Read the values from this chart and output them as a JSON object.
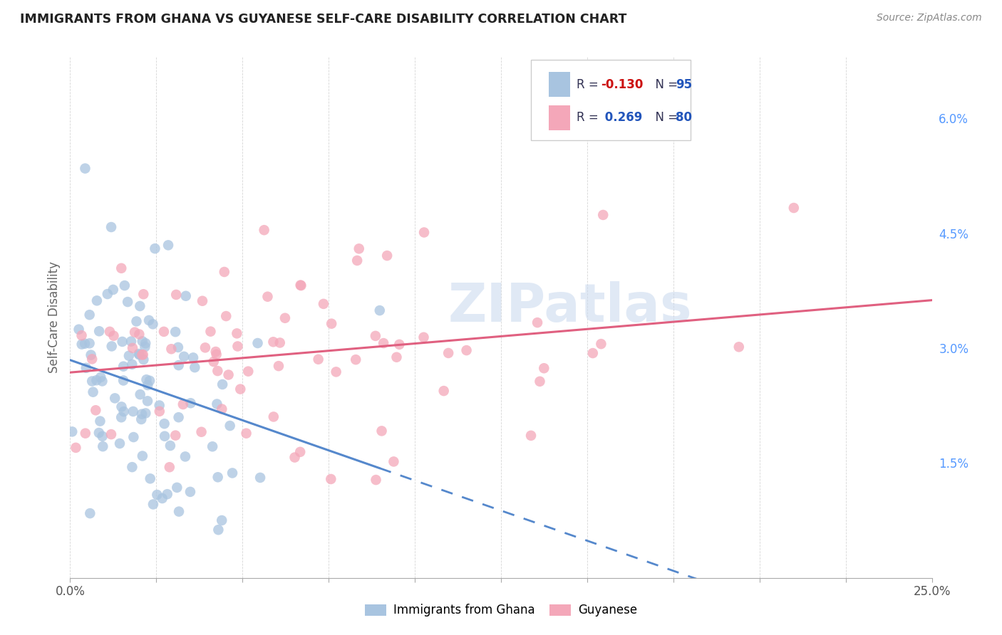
{
  "title": "IMMIGRANTS FROM GHANA VS GUYANESE SELF-CARE DISABILITY CORRELATION CHART",
  "source": "Source: ZipAtlas.com",
  "ylabel": "Self-Care Disability",
  "right_yticks": [
    "6.0%",
    "4.5%",
    "3.0%",
    "1.5%"
  ],
  "right_ytick_vals": [
    6.0,
    4.5,
    3.0,
    1.5
  ],
  "xmin": 0.0,
  "xmax": 25.0,
  "ymin": 0.0,
  "ymax": 6.8,
  "ghana_R": -0.13,
  "ghana_N": 95,
  "guyanese_R": 0.269,
  "guyanese_N": 80,
  "ghana_color": "#a8c4e0",
  "guyanese_color": "#f4a7b9",
  "trend_ghana_color": "#5588cc",
  "trend_guyanese_color": "#e06080",
  "watermark": "ZIPatlas",
  "legend_R_label_color": "#333355",
  "legend_ghana_R_val_color": "#cc1111",
  "legend_blue_color": "#2255bb",
  "legend_box_edge_color": "#cccccc",
  "grid_color": "#cccccc",
  "right_tick_color": "#5599ff",
  "title_color": "#222222",
  "source_color": "#888888",
  "ylabel_color": "#666666"
}
